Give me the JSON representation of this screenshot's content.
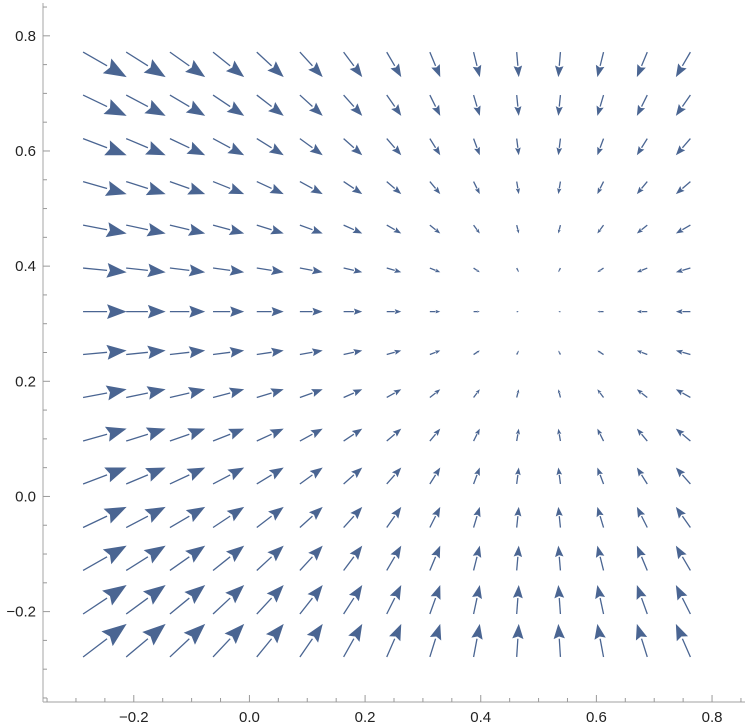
{
  "chart_data": {
    "type": "vector-field",
    "title": "",
    "xlabel": "",
    "ylabel": "",
    "xlim": [
      -0.357,
      0.857
    ],
    "ylim": [
      -0.357,
      0.857
    ],
    "grid": false,
    "arrow_color": "#4a6592",
    "axis_color": "#b3b3b3",
    "x_ticks": [
      {
        "value": -0.2,
        "label": "−0.2"
      },
      {
        "value": 0.0,
        "label": "0.0"
      },
      {
        "value": 0.2,
        "label": "0.2"
      },
      {
        "value": 0.4,
        "label": "0.4"
      },
      {
        "value": 0.6,
        "label": "0.6"
      },
      {
        "value": 0.8,
        "label": "0.8"
      }
    ],
    "y_ticks": [
      {
        "value": -0.2,
        "label": "−0.2"
      },
      {
        "value": 0.0,
        "label": "0.0"
      },
      {
        "value": 0.2,
        "label": "0.2"
      },
      {
        "value": 0.4,
        "label": "0.4"
      },
      {
        "value": 0.6,
        "label": "0.6"
      },
      {
        "value": 0.8,
        "label": "0.8"
      }
    ],
    "minor_tick_step": 0.05,
    "x": [
      -0.25,
      -0.179,
      -0.107,
      -0.036,
      0.036,
      0.107,
      0.179,
      0.25,
      0.321,
      0.393,
      0.464,
      0.536,
      0.607,
      0.679,
      0.75
    ],
    "y": [
      -0.25,
      -0.179,
      -0.107,
      -0.036,
      0.036,
      0.107,
      0.179,
      0.25,
      0.321,
      0.393,
      0.464,
      0.536,
      0.607,
      0.679,
      0.75
    ],
    "u": [
      [
        0.75,
        0.679,
        0.607,
        0.536,
        0.464,
        0.393,
        0.321,
        0.25,
        0.179,
        0.107,
        0.036,
        -0.036,
        -0.107,
        -0.179,
        -0.25
      ],
      [
        0.75,
        0.679,
        0.607,
        0.536,
        0.464,
        0.393,
        0.321,
        0.25,
        0.179,
        0.107,
        0.036,
        -0.036,
        -0.107,
        -0.179,
        -0.25
      ],
      [
        0.75,
        0.679,
        0.607,
        0.536,
        0.464,
        0.393,
        0.321,
        0.25,
        0.179,
        0.107,
        0.036,
        -0.036,
        -0.107,
        -0.179,
        -0.25
      ],
      [
        0.75,
        0.679,
        0.607,
        0.536,
        0.464,
        0.393,
        0.321,
        0.25,
        0.179,
        0.107,
        0.036,
        -0.036,
        -0.107,
        -0.179,
        -0.25
      ],
      [
        0.75,
        0.679,
        0.607,
        0.536,
        0.464,
        0.393,
        0.321,
        0.25,
        0.179,
        0.107,
        0.036,
        -0.036,
        -0.107,
        -0.179,
        -0.25
      ],
      [
        0.75,
        0.679,
        0.607,
        0.536,
        0.464,
        0.393,
        0.321,
        0.25,
        0.179,
        0.107,
        0.036,
        -0.036,
        -0.107,
        -0.179,
        -0.25
      ],
      [
        0.75,
        0.679,
        0.607,
        0.536,
        0.464,
        0.393,
        0.321,
        0.25,
        0.179,
        0.107,
        0.036,
        -0.036,
        -0.107,
        -0.179,
        -0.25
      ],
      [
        0.75,
        0.679,
        0.607,
        0.536,
        0.464,
        0.393,
        0.321,
        0.25,
        0.179,
        0.107,
        0.036,
        -0.036,
        -0.107,
        -0.179,
        -0.25
      ],
      [
        0.75,
        0.679,
        0.607,
        0.536,
        0.464,
        0.393,
        0.321,
        0.25,
        0.179,
        0.107,
        0.036,
        -0.036,
        -0.107,
        -0.179,
        -0.25
      ],
      [
        0.75,
        0.679,
        0.607,
        0.536,
        0.464,
        0.393,
        0.321,
        0.25,
        0.179,
        0.107,
        0.036,
        -0.036,
        -0.107,
        -0.179,
        -0.25
      ],
      [
        0.75,
        0.679,
        0.607,
        0.536,
        0.464,
        0.393,
        0.321,
        0.25,
        0.179,
        0.107,
        0.036,
        -0.036,
        -0.107,
        -0.179,
        -0.25
      ],
      [
        0.75,
        0.679,
        0.607,
        0.536,
        0.464,
        0.393,
        0.321,
        0.25,
        0.179,
        0.107,
        0.036,
        -0.036,
        -0.107,
        -0.179,
        -0.25
      ],
      [
        0.75,
        0.679,
        0.607,
        0.536,
        0.464,
        0.393,
        0.321,
        0.25,
        0.179,
        0.107,
        0.036,
        -0.036,
        -0.107,
        -0.179,
        -0.25
      ],
      [
        0.75,
        0.679,
        0.607,
        0.536,
        0.464,
        0.393,
        0.321,
        0.25,
        0.179,
        0.107,
        0.036,
        -0.036,
        -0.107,
        -0.179,
        -0.25
      ],
      [
        0.75,
        0.679,
        0.607,
        0.536,
        0.464,
        0.393,
        0.321,
        0.25,
        0.179,
        0.107,
        0.036,
        -0.036,
        -0.107,
        -0.179,
        -0.25
      ]
    ],
    "v": [
      [
        0.57,
        0.57,
        0.57,
        0.57,
        0.57,
        0.57,
        0.57,
        0.57,
        0.57,
        0.57,
        0.57,
        0.57,
        0.57,
        0.57,
        0.57
      ],
      [
        0.499,
        0.499,
        0.499,
        0.499,
        0.499,
        0.499,
        0.499,
        0.499,
        0.499,
        0.499,
        0.499,
        0.499,
        0.499,
        0.499,
        0.499
      ],
      [
        0.427,
        0.427,
        0.427,
        0.427,
        0.427,
        0.427,
        0.427,
        0.427,
        0.427,
        0.427,
        0.427,
        0.427,
        0.427,
        0.427,
        0.427
      ],
      [
        0.356,
        0.356,
        0.356,
        0.356,
        0.356,
        0.356,
        0.356,
        0.356,
        0.356,
        0.356,
        0.356,
        0.356,
        0.356,
        0.356,
        0.356
      ],
      [
        0.284,
        0.284,
        0.284,
        0.284,
        0.284,
        0.284,
        0.284,
        0.284,
        0.284,
        0.284,
        0.284,
        0.284,
        0.284,
        0.284,
        0.284
      ],
      [
        0.213,
        0.213,
        0.213,
        0.213,
        0.213,
        0.213,
        0.213,
        0.213,
        0.213,
        0.213,
        0.213,
        0.213,
        0.213,
        0.213,
        0.213
      ],
      [
        0.141,
        0.141,
        0.141,
        0.141,
        0.141,
        0.141,
        0.141,
        0.141,
        0.141,
        0.141,
        0.141,
        0.141,
        0.141,
        0.141,
        0.141
      ],
      [
        0.07,
        0.07,
        0.07,
        0.07,
        0.07,
        0.07,
        0.07,
        0.07,
        0.07,
        0.07,
        0.07,
        0.07,
        0.07,
        0.07,
        0.07
      ],
      [
        -0.001,
        -0.001,
        -0.001,
        -0.001,
        -0.001,
        -0.001,
        -0.001,
        -0.001,
        -0.001,
        -0.001,
        -0.001,
        -0.001,
        -0.001,
        -0.001,
        -0.001
      ],
      [
        -0.073,
        -0.073,
        -0.073,
        -0.073,
        -0.073,
        -0.073,
        -0.073,
        -0.073,
        -0.073,
        -0.073,
        -0.073,
        -0.073,
        -0.073,
        -0.073,
        -0.073
      ],
      [
        -0.144,
        -0.144,
        -0.144,
        -0.144,
        -0.144,
        -0.144,
        -0.144,
        -0.144,
        -0.144,
        -0.144,
        -0.144,
        -0.144,
        -0.144,
        -0.144,
        -0.144
      ],
      [
        -0.215,
        -0.215,
        -0.215,
        -0.215,
        -0.215,
        -0.215,
        -0.215,
        -0.215,
        -0.215,
        -0.215,
        -0.215,
        -0.215,
        -0.215,
        -0.215,
        -0.215
      ],
      [
        -0.287,
        -0.287,
        -0.287,
        -0.287,
        -0.287,
        -0.287,
        -0.287,
        -0.287,
        -0.287,
        -0.287,
        -0.287,
        -0.287,
        -0.287,
        -0.287,
        -0.287
      ],
      [
        -0.359,
        -0.359,
        -0.359,
        -0.359,
        -0.359,
        -0.359,
        -0.359,
        -0.359,
        -0.359,
        -0.359,
        -0.359,
        -0.359,
        -0.359,
        -0.359,
        -0.359
      ],
      [
        -0.43,
        -0.43,
        -0.43,
        -0.43,
        -0.43,
        -0.43,
        -0.43,
        -0.43,
        -0.43,
        -0.43,
        -0.43,
        -0.43,
        -0.43,
        -0.43,
        -0.43
      ]
    ]
  }
}
